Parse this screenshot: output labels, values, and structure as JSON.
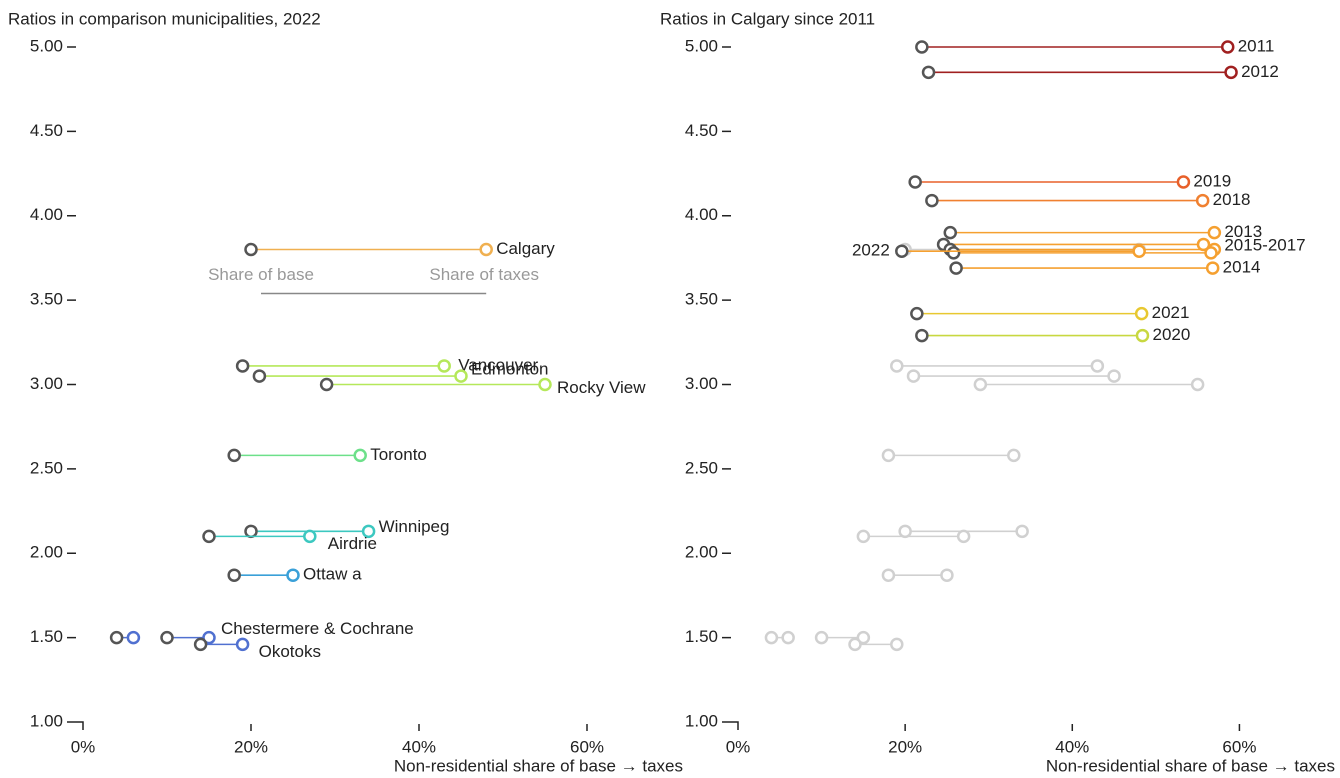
{
  "chart_data": [
    {
      "type": "dumbbell",
      "title": "Ratios in comparison municipalities, 2022",
      "x_label": "Non-residential share of base → taxes",
      "base_color": "#555555",
      "annotations": [
        "Share of base",
        "Share of taxes"
      ],
      "xlim": [
        0,
        70
      ],
      "xticks": [
        {
          "value": 0,
          "label": "0%"
        },
        {
          "value": 20,
          "label": "20%"
        },
        {
          "value": 40,
          "label": "40%"
        },
        {
          "value": 60,
          "label": "60%"
        }
      ],
      "ylim": [
        1,
        5
      ],
      "yticks": [
        {
          "value": 1,
          "label": "1.00"
        },
        {
          "value": 1.5,
          "label": "1.50"
        },
        {
          "value": 2,
          "label": "2.00"
        },
        {
          "value": 2.5,
          "label": "2.50"
        },
        {
          "value": 3,
          "label": "3.00"
        },
        {
          "value": 3.5,
          "label": "3.50"
        },
        {
          "value": 4,
          "label": "4.00"
        },
        {
          "value": 4.5,
          "label": "4.50"
        },
        {
          "value": 5,
          "label": "5.00"
        }
      ],
      "rows": [
        {
          "label": "Calgary",
          "color": "#f0b050",
          "pairs": [
            {
              "base": 20,
              "taxes": 48,
              "ratio": 3.8
            }
          ]
        },
        {
          "label": "Vancouver",
          "color": "#b5e85a",
          "pairs": [
            {
              "base": 19,
              "taxes": 43,
              "ratio": 3.11
            }
          ]
        },
        {
          "label": "Edmonton",
          "color": "#b5e85a",
          "pairs": [
            {
              "base": 21,
              "taxes": 45,
              "ratio": 3.05
            }
          ]
        },
        {
          "label": "Rocky View",
          "color": "#b5e85a",
          "pairs": [
            {
              "base": 29,
              "taxes": 55,
              "ratio": 3.0
            }
          ]
        },
        {
          "label": "Toronto",
          "color": "#6de08a",
          "pairs": [
            {
              "base": 18,
              "taxes": 33,
              "ratio": 2.58
            }
          ]
        },
        {
          "label": "Winnipeg",
          "color": "#3cc8c0",
          "pairs": [
            {
              "base": 20,
              "taxes": 34,
              "ratio": 2.13
            }
          ]
        },
        {
          "label": "Airdrie",
          "color": "#3cc8c0",
          "pairs": [
            {
              "base": 15,
              "taxes": 27,
              "ratio": 2.1
            }
          ]
        },
        {
          "label": "Ottaw a",
          "color": "#3aa0d8",
          "pairs": [
            {
              "base": 18,
              "taxes": 25,
              "ratio": 1.87
            }
          ]
        },
        {
          "label": "Chestermere & Cochrane",
          "color": "#5070d0",
          "pairs": [
            {
              "base": 4,
              "taxes": 6,
              "ratio": 1.5
            },
            {
              "base": 10,
              "taxes": 15,
              "ratio": 1.5
            }
          ]
        },
        {
          "label": "Okotoks",
          "color": "#5070d0",
          "pairs": [
            {
              "base": 14,
              "taxes": 19,
              "ratio": 1.46
            }
          ]
        }
      ]
    },
    {
      "type": "dumbbell",
      "title": "Ratios in Calgary since 2011",
      "x_label": "Non-residential share of base → taxes",
      "base_color": "#555555",
      "context_color": "#d0d0d0",
      "xlim": [
        0,
        70
      ],
      "xticks": [
        {
          "value": 0,
          "label": "0%"
        },
        {
          "value": 20,
          "label": "20%"
        },
        {
          "value": 40,
          "label": "40%"
        },
        {
          "value": 60,
          "label": "60%"
        }
      ],
      "ylim": [
        1,
        5
      ],
      "yticks": [
        {
          "value": 1,
          "label": "1.00"
        },
        {
          "value": 1.5,
          "label": "1.50"
        },
        {
          "value": 2,
          "label": "2.00"
        },
        {
          "value": 2.5,
          "label": "2.50"
        },
        {
          "value": 3,
          "label": "3.00"
        },
        {
          "value": 3.5,
          "label": "3.50"
        },
        {
          "value": 4,
          "label": "4.00"
        },
        {
          "value": 4.5,
          "label": "4.50"
        },
        {
          "value": 5,
          "label": "5.00"
        }
      ],
      "rows": [
        {
          "label": "2011",
          "color": "#a02020",
          "pairs": [
            {
              "base": 22,
              "taxes": 58.6,
              "ratio": 5.0
            }
          ]
        },
        {
          "label": "2012",
          "color": "#a02020",
          "pairs": [
            {
              "base": 22.8,
              "taxes": 59,
              "ratio": 4.85
            }
          ]
        },
        {
          "label": "2019",
          "color": "#e8602a",
          "pairs": [
            {
              "base": 21.2,
              "taxes": 53.3,
              "ratio": 4.2
            }
          ]
        },
        {
          "label": "2018",
          "color": "#f08030",
          "pairs": [
            {
              "base": 23.2,
              "taxes": 55.6,
              "ratio": 4.09
            }
          ]
        },
        {
          "label": "2013",
          "color": "#f5a030",
          "pairs": [
            {
              "base": 25.4,
              "taxes": 57,
              "ratio": 3.9
            }
          ]
        },
        {
          "label": "2015-2017",
          "color": "#f5a030",
          "pairs": [
            {
              "base": 24.6,
              "taxes": 55.7,
              "ratio": 3.83
            },
            {
              "base": 25.4,
              "taxes": 57,
              "ratio": 3.8
            },
            {
              "base": 25.8,
              "taxes": 56.6,
              "ratio": 3.78
            }
          ]
        },
        {
          "label": "2022",
          "color": "#f5a030",
          "pairs": [
            {
              "base": 19.6,
              "taxes": 48,
              "ratio": 3.79
            }
          ]
        },
        {
          "label": "2014",
          "color": "#f5a030",
          "pairs": [
            {
              "base": 26.1,
              "taxes": 56.8,
              "ratio": 3.69
            }
          ]
        },
        {
          "label": "2021",
          "color": "#e8c830",
          "pairs": [
            {
              "base": 21.4,
              "taxes": 48.3,
              "ratio": 3.42
            }
          ]
        },
        {
          "label": "2020",
          "color": "#c8d840",
          "pairs": [
            {
              "base": 22,
              "taxes": 48.4,
              "ratio": 3.29
            }
          ]
        }
      ]
    }
  ]
}
